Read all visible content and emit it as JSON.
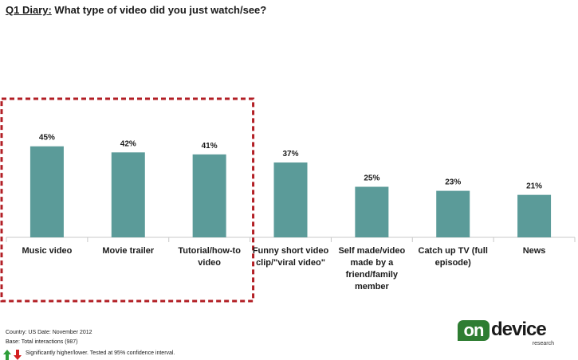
{
  "title": {
    "lead": "Q1 Diary:",
    "question": " What type of video did you just watch/see?"
  },
  "chart_data": {
    "type": "bar",
    "categories": [
      "Music  video",
      "Movie trailer",
      "Tutorial/how-to video",
      "Funny short video clip/\"viral video\"",
      "Self made/video made by a friend/family member",
      "Catch up TV (full episode)",
      "News"
    ],
    "values": [
      45,
      42,
      41,
      37,
      25,
      23,
      21
    ],
    "data_labels": [
      "45%",
      "42%",
      "41%",
      "37%",
      "25%",
      "23%",
      "21%"
    ],
    "highlighted_categories": [
      "Music  video",
      "Movie trailer",
      "Tutorial/how-to video"
    ],
    "ylim": [
      0,
      100
    ],
    "grid": false,
    "colors": {
      "bar": "#5b9b99",
      "highlight_box": "#b21e24",
      "axis": "#c8c8c8"
    }
  },
  "footer": {
    "country": "Country: US Date: November  2012",
    "base": "Base: Total interactions (987)",
    "significance": "Significantly higher/lower. Tested at 95% confidence interval."
  },
  "logo": {
    "on": "on",
    "device": "device",
    "research": "research"
  },
  "icons": {
    "up": "green-up-arrow-icon",
    "down": "red-down-arrow-icon"
  },
  "colors": {
    "up_arrow": "#2e9e3a",
    "down_arrow": "#d32020",
    "logo_green": "#2e7d32"
  }
}
